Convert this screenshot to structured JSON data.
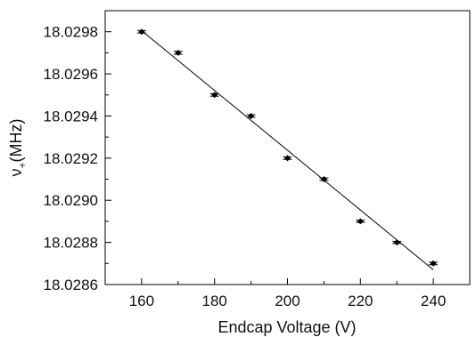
{
  "chart_data": {
    "type": "scatter",
    "xlabel": "Endcap Voltage (V)",
    "ylabel_main": "ν",
    "ylabel_sub": "+",
    "ylabel_unit": "(MHz)",
    "xlim": [
      150,
      250
    ],
    "ylim": [
      18.0286,
      18.0299
    ],
    "xticks": [
      160,
      180,
      200,
      220,
      240
    ],
    "yticks": [
      18.0286,
      18.0288,
      18.029,
      18.0292,
      18.0294,
      18.0296,
      18.0298
    ],
    "ytick_labels": [
      "18.0286",
      "18.0288",
      "18.0290",
      "18.0292",
      "18.0294",
      "18.0296",
      "18.0298"
    ],
    "minor_xticks": [
      150,
      170,
      190,
      210,
      230,
      250
    ],
    "minor_yticks": [
      18.0287,
      18.0289,
      18.0291,
      18.0293,
      18.0295,
      18.0297,
      18.0299
    ],
    "series": [
      {
        "x": [
          160,
          170,
          180,
          190,
          200,
          210,
          220,
          230,
          240
        ],
        "y": [
          18.0298,
          18.0297,
          18.0295,
          18.0294,
          18.0292,
          18.0291,
          18.0289,
          18.0288,
          18.0287
        ],
        "yerr": [
          6e-06,
          7e-06,
          6e-06,
          6e-06,
          6e-06,
          6e-06,
          5e-06,
          5e-06,
          6e-06
        ]
      }
    ],
    "fit_line": {
      "x": [
        160,
        240
      ],
      "y": [
        18.029805,
        18.02867
      ]
    },
    "grid": false,
    "legend": "none"
  }
}
